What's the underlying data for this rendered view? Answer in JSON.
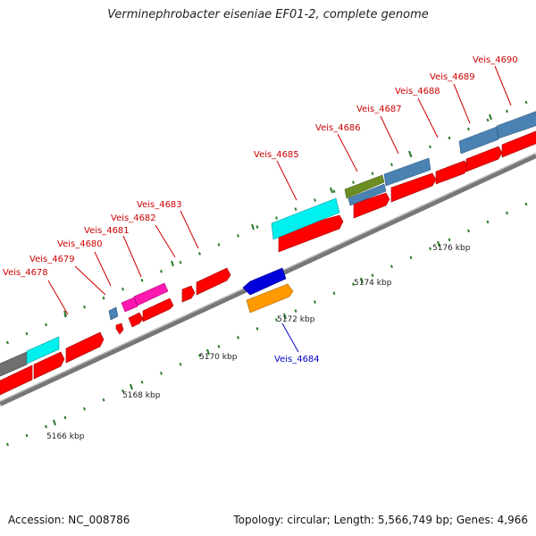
{
  "title": "Verminephrobacter eiseniae EF01-2, complete genome",
  "footer": {
    "accession": "Accession: NC_008786",
    "summary": "Topology: circular; Length: 5,566,749 bp; Genes: 4,966"
  },
  "colors": {
    "label_red": "#cc0000",
    "label_blue": "#0000cc",
    "cds": "#ff0000",
    "tick": "#2a7a2a",
    "cyan": "#00f0f0",
    "steelblue": "#4a82b4",
    "magenta": "#ff18b0",
    "olive": "#6b8e23",
    "grey": "#707070",
    "blue": "#0000dd",
    "orange": "#ff9900"
  },
  "kbp_labels": [
    {
      "kb": 5166,
      "text": "5166 kbp"
    },
    {
      "kb": 5168,
      "text": "5168 kbp"
    },
    {
      "kb": 5170,
      "text": "5170 kbp"
    },
    {
      "kb": 5172,
      "text": "5172 kbp"
    },
    {
      "kb": 5174,
      "text": "5174 kbp"
    },
    {
      "kb": 5176,
      "text": "5176 kbp"
    }
  ],
  "gene_labels": [
    {
      "text": "Veis_4678",
      "color": "red"
    },
    {
      "text": "Veis_4679",
      "color": "red"
    },
    {
      "text": "Veis_4680",
      "color": "red"
    },
    {
      "text": "Veis_4681",
      "color": "red"
    },
    {
      "text": "Veis_4682",
      "color": "red"
    },
    {
      "text": "Veis_4683",
      "color": "red"
    },
    {
      "text": "Veis_4684",
      "color": "blue"
    },
    {
      "text": "Veis_4685",
      "color": "red"
    },
    {
      "text": "Veis_4686",
      "color": "red"
    },
    {
      "text": "Veis_4687",
      "color": "red"
    },
    {
      "text": "Veis_4688",
      "color": "red"
    },
    {
      "text": "Veis_4689",
      "color": "red"
    },
    {
      "text": "Veis_4690",
      "color": "red"
    }
  ]
}
